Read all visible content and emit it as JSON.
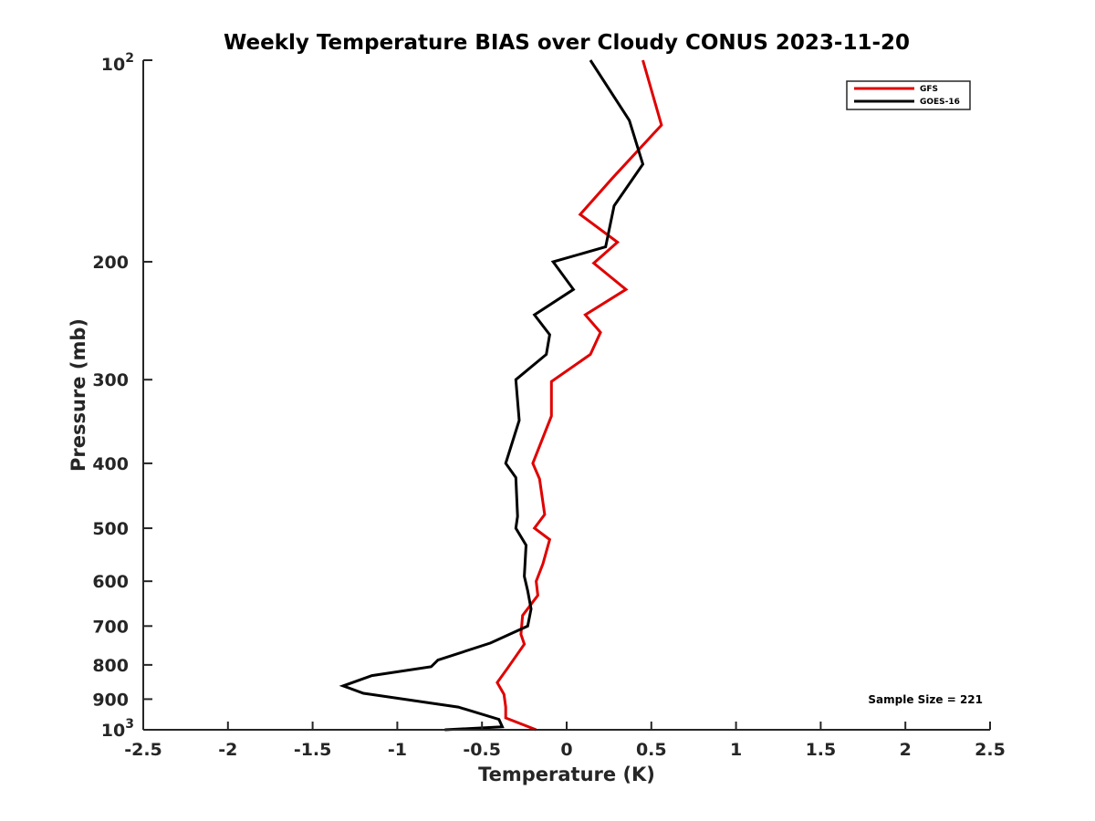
{
  "chart_data": {
    "type": "line",
    "title": "Weekly Temperature BIAS over Cloudy CONUS 2023-11-20",
    "xlabel": "Temperature (K)",
    "ylabel": "Pressure (mb)",
    "xlim": [
      -2.5,
      2.5
    ],
    "ylim": [
      100,
      1000
    ],
    "y_scale": "log",
    "y_reversed": true,
    "x_ticks": [
      -2.5,
      -2,
      -1.5,
      -1,
      -0.5,
      0,
      0.5,
      1,
      1.5,
      2,
      2.5
    ],
    "x_tick_labels": [
      "-2.5",
      "-2",
      "-1.5",
      "-1",
      "-0.5",
      "0",
      "0.5",
      "1",
      "1.5",
      "2",
      "2.5"
    ],
    "y_ticks": [
      200,
      300,
      400,
      500,
      600,
      700,
      800,
      900
    ],
    "y_tick_labels": [
      "200",
      "300",
      "400",
      "500",
      "600",
      "700",
      "800",
      "900"
    ],
    "y_top_label": {
      "base": "10",
      "exp": "2"
    },
    "y_bottom_label": {
      "base": "10",
      "exp": "3"
    },
    "grid": false,
    "legend_position": "top-right",
    "annotation": "Sample Size = 221",
    "series": [
      {
        "name": "GFS",
        "color": "#e00000",
        "points": [
          [
            0.45,
            100
          ],
          [
            0.56,
            125
          ],
          [
            0.27,
            150
          ],
          [
            0.08,
            170
          ],
          [
            0.3,
            187
          ],
          [
            0.16,
            201
          ],
          [
            0.35,
            220
          ],
          [
            0.11,
            240
          ],
          [
            0.2,
            255
          ],
          [
            0.14,
            275
          ],
          [
            -0.09,
            302
          ],
          [
            -0.09,
            340
          ],
          [
            -0.2,
            400
          ],
          [
            -0.16,
            422
          ],
          [
            -0.13,
            477
          ],
          [
            -0.19,
            500
          ],
          [
            -0.1,
            520
          ],
          [
            -0.14,
            565
          ],
          [
            -0.18,
            600
          ],
          [
            -0.17,
            630
          ],
          [
            -0.26,
            675
          ],
          [
            -0.27,
            720
          ],
          [
            -0.25,
            745
          ],
          [
            -0.35,
            810
          ],
          [
            -0.41,
            850
          ],
          [
            -0.37,
            885
          ],
          [
            -0.36,
            925
          ],
          [
            -0.36,
            960
          ],
          [
            -0.18,
            1000
          ]
        ]
      },
      {
        "name": "GOES-16",
        "color": "#000000",
        "points": [
          [
            0.14,
            100
          ],
          [
            0.37,
            123
          ],
          [
            0.45,
            143
          ],
          [
            0.28,
            165
          ],
          [
            0.23,
            190
          ],
          [
            -0.08,
            200
          ],
          [
            0.04,
            220
          ],
          [
            -0.19,
            240
          ],
          [
            -0.1,
            257
          ],
          [
            -0.12,
            275
          ],
          [
            -0.3,
            300
          ],
          [
            -0.28,
            345
          ],
          [
            -0.36,
            400
          ],
          [
            -0.3,
            420
          ],
          [
            -0.29,
            480
          ],
          [
            -0.3,
            500
          ],
          [
            -0.24,
            530
          ],
          [
            -0.25,
            590
          ],
          [
            -0.23,
            620
          ],
          [
            -0.21,
            660
          ],
          [
            -0.23,
            700
          ],
          [
            -0.45,
            742
          ],
          [
            -0.76,
            787
          ],
          [
            -0.8,
            805
          ],
          [
            -1.15,
            830
          ],
          [
            -1.32,
            860
          ],
          [
            -1.2,
            882
          ],
          [
            -0.64,
            925
          ],
          [
            -0.4,
            965
          ],
          [
            -0.38,
            990
          ],
          [
            -0.72,
            1000
          ]
        ]
      }
    ]
  }
}
